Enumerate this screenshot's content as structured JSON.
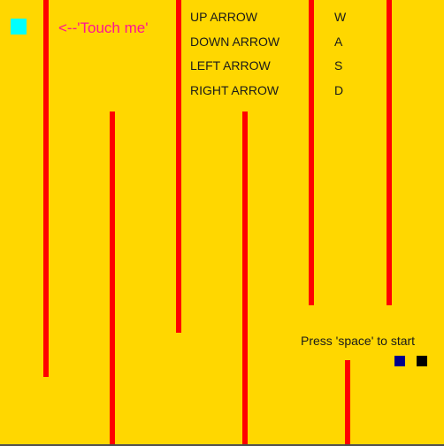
{
  "game": {
    "target_label": "<--'Touch me'",
    "start_prompt": "Press 'space' to start",
    "controls": [
      {
        "arrow": "UP ARROW",
        "key": "W"
      },
      {
        "arrow": "DOWN ARROW",
        "key": "A"
      },
      {
        "arrow": "LEFT ARROW",
        "key": "S"
      },
      {
        "arrow": "RIGHT ARROW",
        "key": "D"
      }
    ]
  },
  "colors": {
    "background": "#ffd700",
    "wall": "#ff0000",
    "target": "#00ffff",
    "target_label": "#ff1493",
    "player_blue": "#00008b",
    "player_black": "#000000"
  }
}
